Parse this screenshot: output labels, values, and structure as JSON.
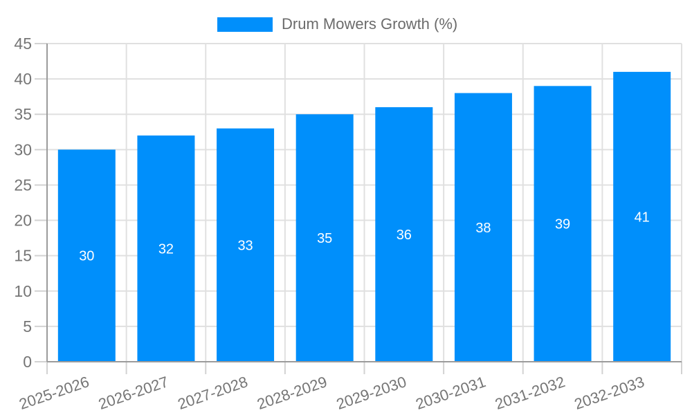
{
  "colors": {
    "bar": "#008FFB",
    "axis": "#9b9b9b",
    "grid": "#e0e0e0",
    "tick": "#d2d2d2",
    "tick_label": "#757575",
    "bar_value_label": "#ffffff",
    "legend_text": "#6b6b6b",
    "background": "#ffffff"
  },
  "chart_data": {
    "type": "bar",
    "title": "Drum Mowers Growth (%)",
    "categories": [
      "2025-2026",
      "2026-2027",
      "2027-2028",
      "2028-2029",
      "2029-2030",
      "2030-2031",
      "2031-2032",
      "2032-2033"
    ],
    "series": [
      {
        "name": "Drum Mowers Growth (%)",
        "color": "#008FFB",
        "values": [
          30,
          32,
          33,
          35,
          36,
          38,
          39,
          41
        ]
      }
    ],
    "xlabel": "",
    "ylabel": "",
    "ylim": [
      0,
      45
    ],
    "yticks": [
      0,
      5,
      10,
      15,
      20,
      25,
      30,
      35,
      40,
      45
    ],
    "grid": true,
    "legend_position": "top",
    "value_labels": "inside-center",
    "x_label_rotation_deg": -19
  }
}
